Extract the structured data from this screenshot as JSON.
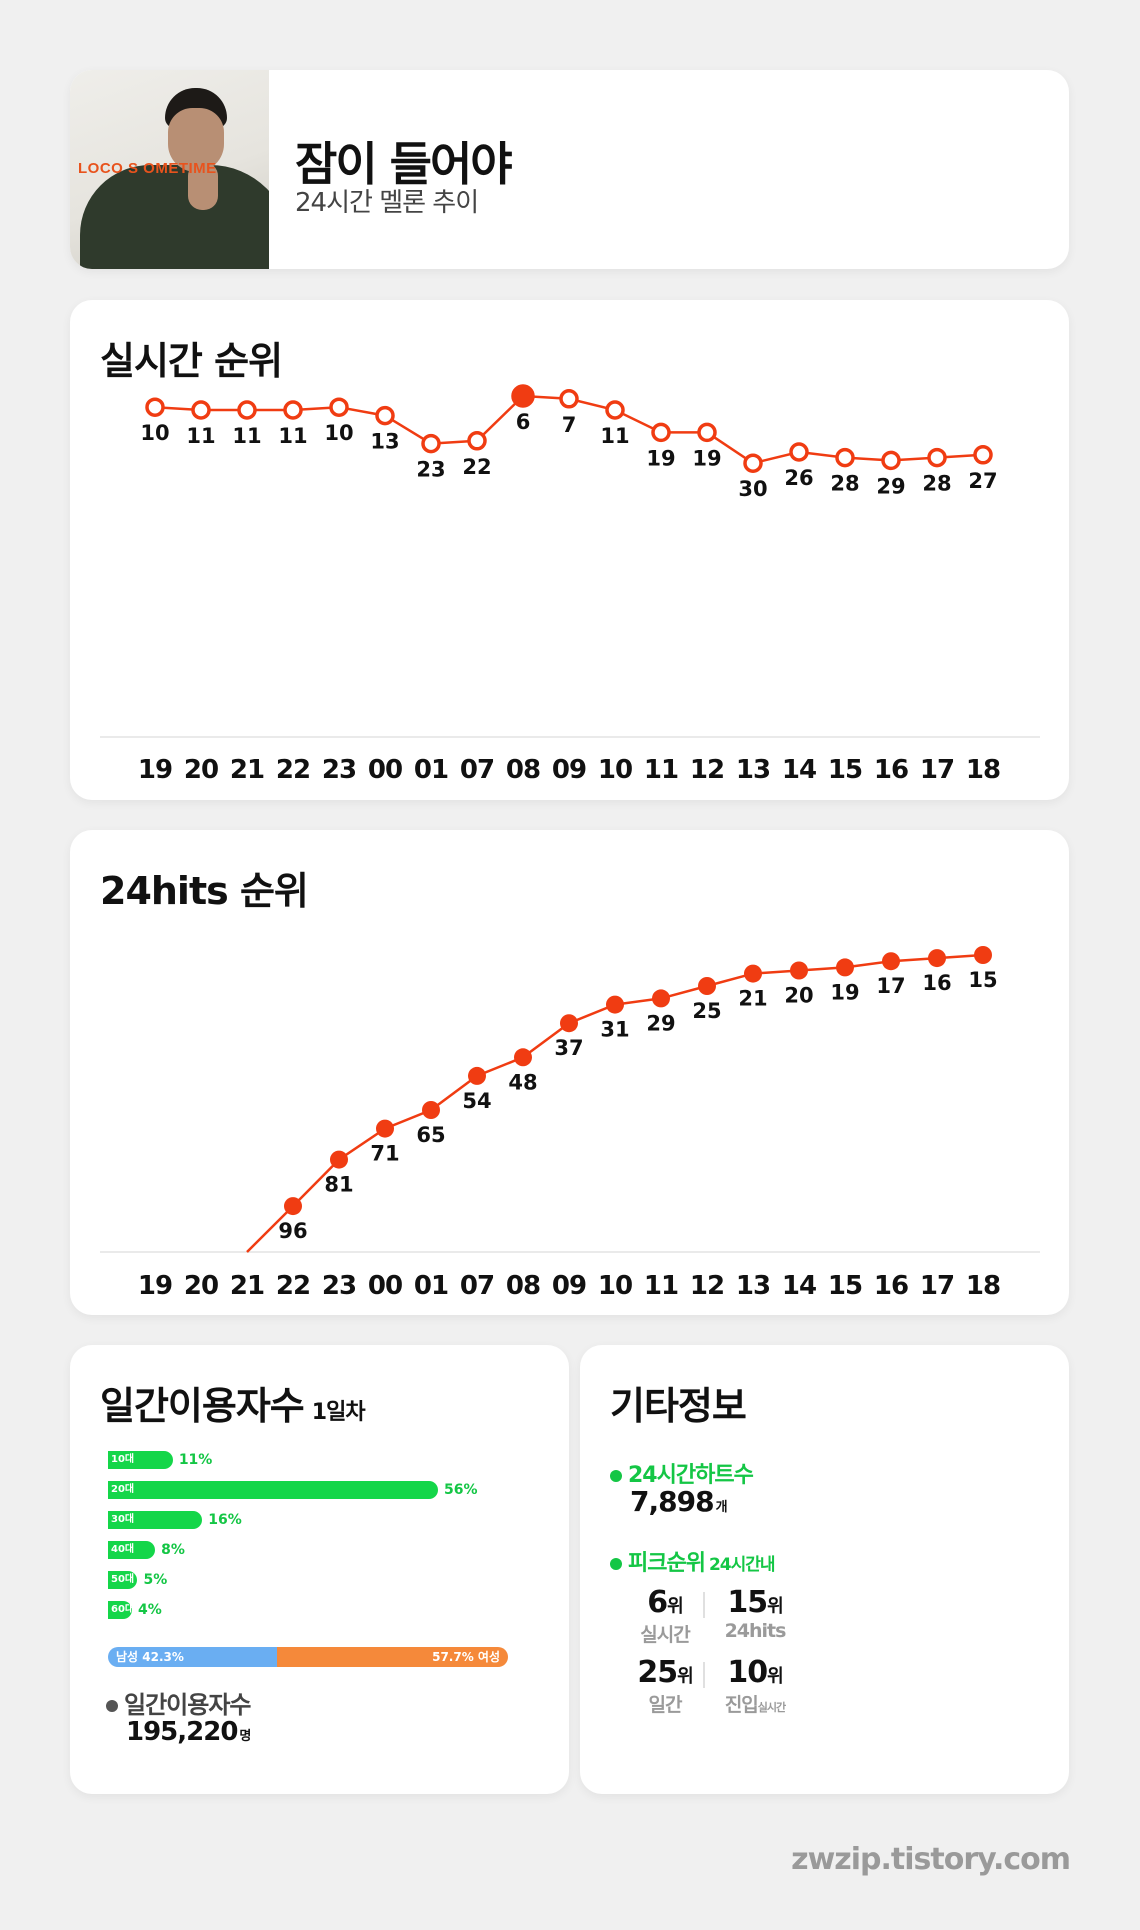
{
  "header": {
    "cover_text": "LOCO S OMETIME",
    "title": "잠이 들어야",
    "subtitle": "24시간 멜론 추이"
  },
  "realtime": {
    "title": "실시간 순위",
    "labels": [
      "10",
      "11",
      "11",
      "11",
      "10",
      "13",
      "23",
      "22",
      "6",
      "7",
      "11",
      "19",
      "19",
      "30",
      "26",
      "28",
      "29",
      "28",
      "27"
    ]
  },
  "hits": {
    "title": "24hits 순위",
    "labels": [
      "",
      "",
      "",
      "96",
      "81",
      "71",
      "65",
      "54",
      "48",
      "37",
      "31",
      "29",
      "25",
      "21",
      "20",
      "19",
      "17",
      "16",
      "15"
    ]
  },
  "colors": {
    "accent": "#f03c12",
    "green": "#14d649",
    "male": "#6aaef2",
    "female": "#f5893a"
  },
  "chart_data": [
    {
      "type": "line",
      "title": "실시간 순위",
      "categories": [
        "19",
        "20",
        "21",
        "22",
        "23",
        "00",
        "01",
        "07",
        "08",
        "09",
        "10",
        "11",
        "12",
        "13",
        "14",
        "15",
        "16",
        "17",
        "18"
      ],
      "series": [
        {
          "name": "실시간 순위",
          "values": [
            10,
            11,
            11,
            11,
            10,
            13,
            23,
            22,
            6,
            7,
            11,
            19,
            19,
            30,
            26,
            28,
            29,
            28,
            27
          ]
        }
      ],
      "peak_index": 8,
      "y_inverted": true
    },
    {
      "type": "line",
      "title": "24hits 순위",
      "categories": [
        "19",
        "20",
        "21",
        "22",
        "23",
        "00",
        "01",
        "07",
        "08",
        "09",
        "10",
        "11",
        "12",
        "13",
        "14",
        "15",
        "16",
        "17",
        "18"
      ],
      "series": [
        {
          "name": "24hits 순위",
          "values": [
            null,
            null,
            null,
            96,
            81,
            71,
            65,
            54,
            48,
            37,
            31,
            29,
            25,
            21,
            20,
            19,
            17,
            16,
            15
          ]
        }
      ],
      "y_inverted": true
    }
  ],
  "users": {
    "title": "일간이용자수",
    "title_sub": "1일차",
    "age_groups": [
      {
        "label": "10대",
        "pct": 11,
        "pct_text": "11%"
      },
      {
        "label": "20대",
        "pct": 56,
        "pct_text": "56%"
      },
      {
        "label": "30대",
        "pct": 16,
        "pct_text": "16%"
      },
      {
        "label": "40대",
        "pct": 8,
        "pct_text": "8%"
      },
      {
        "label": "50대",
        "pct": 5,
        "pct_text": "5%"
      },
      {
        "label": "60대",
        "pct": 4,
        "pct_text": "4%"
      }
    ],
    "male_label": "남성 42.3%",
    "male_pct": 42.3,
    "female_label": "57.7% 여성",
    "daily_label": "일간이용자수",
    "daily_value": "195,220",
    "daily_unit": "명"
  },
  "info": {
    "title": "기타정보",
    "hearts_label": "24시간하트수",
    "hearts_value": "7,898",
    "hearts_unit": "개",
    "peak_label": "피크순위",
    "peak_note": "24시간내",
    "peaks": [
      {
        "num": "6",
        "unit": "위",
        "label": "실시간",
        "small": ""
      },
      {
        "num": "15",
        "unit": "위",
        "label": "24hits",
        "small": ""
      },
      {
        "num": "25",
        "unit": "위",
        "label": "일간",
        "small": ""
      },
      {
        "num": "10",
        "unit": "위",
        "label": "진입",
        "small": "실시간"
      }
    ]
  },
  "footer": "zwzip.tistory.com"
}
